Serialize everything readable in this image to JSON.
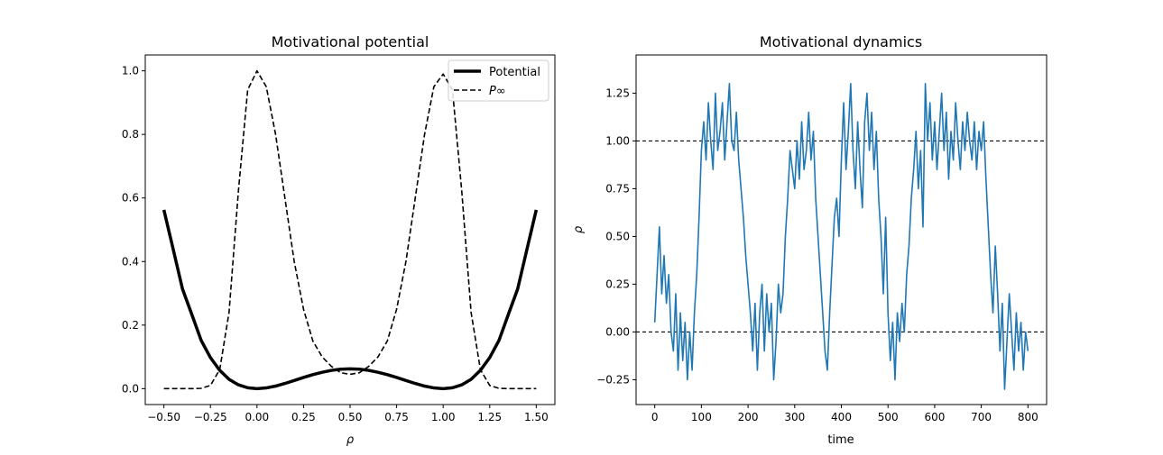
{
  "chart_data": [
    {
      "type": "line",
      "title": "Motivational potential",
      "xlabel": "ρ",
      "ylabel": "",
      "xlim": [
        -0.6,
        1.6
      ],
      "ylim": [
        -0.05,
        1.05
      ],
      "xticks": [
        -0.5,
        -0.25,
        0.0,
        0.25,
        0.5,
        0.75,
        1.0,
        1.25,
        1.5
      ],
      "xtick_labels": [
        "−0.50",
        "−0.25",
        "0.00",
        "0.25",
        "0.50",
        "0.75",
        "1.00",
        "1.25",
        "1.50"
      ],
      "yticks": [
        0.0,
        0.2,
        0.4,
        0.6,
        0.8,
        1.0
      ],
      "ytick_labels": [
        "0.0",
        "0.2",
        "0.4",
        "0.6",
        "0.8",
        "1.0"
      ],
      "legend": "top-right",
      "grid": false,
      "series": [
        {
          "name": "Potential",
          "color": "#000000",
          "style": "solid",
          "x": [
            -0.5,
            -0.45,
            -0.4,
            -0.35,
            -0.3,
            -0.25,
            -0.2,
            -0.15,
            -0.1,
            -0.05,
            0.0,
            0.05,
            0.1,
            0.15,
            0.2,
            0.25,
            0.3,
            0.35,
            0.4,
            0.45,
            0.5,
            0.55,
            0.6,
            0.65,
            0.7,
            0.75,
            0.8,
            0.85,
            0.9,
            0.95,
            1.0,
            1.05,
            1.1,
            1.15,
            1.2,
            1.25,
            1.3,
            1.35,
            1.4,
            1.45,
            1.5
          ],
          "y": [
            0.5625,
            0.4388,
            0.3136,
            0.2335,
            0.1521,
            0.0977,
            0.0576,
            0.0294,
            0.0121,
            0.0028,
            0.0,
            0.0023,
            0.0081,
            0.0163,
            0.0256,
            0.0352,
            0.0441,
            0.0515,
            0.0576,
            0.0613,
            0.0625,
            0.0613,
            0.0576,
            0.0515,
            0.0441,
            0.0352,
            0.0256,
            0.0163,
            0.0081,
            0.0023,
            0.0,
            0.0028,
            0.0121,
            0.0294,
            0.0576,
            0.0977,
            0.1521,
            0.2335,
            0.3136,
            0.4388,
            0.5625
          ]
        },
        {
          "name": "P∞",
          "color": "#000000",
          "style": "dashed",
          "x": [
            -0.5,
            -0.45,
            -0.4,
            -0.35,
            -0.3,
            -0.25,
            -0.2,
            -0.15,
            -0.1,
            -0.05,
            0.0,
            0.05,
            0.1,
            0.15,
            0.2,
            0.25,
            0.3,
            0.35,
            0.4,
            0.45,
            0.5,
            0.55,
            0.6,
            0.65,
            0.7,
            0.75,
            0.8,
            0.85,
            0.9,
            0.95,
            1.0,
            1.05,
            1.1,
            1.15,
            1.2,
            1.25,
            1.3,
            1.35,
            1.4,
            1.45,
            1.5
          ],
          "y": [
            0.0,
            0.0,
            0.0,
            0.0,
            0.001,
            0.01,
            0.06,
            0.24,
            0.62,
            0.94,
            1.0,
            0.95,
            0.8,
            0.6,
            0.4,
            0.25,
            0.15,
            0.1,
            0.07,
            0.05,
            0.045,
            0.05,
            0.07,
            0.1,
            0.15,
            0.25,
            0.4,
            0.6,
            0.8,
            0.95,
            0.99,
            0.94,
            0.62,
            0.24,
            0.06,
            0.01,
            0.001,
            0.0,
            0.0,
            0.0,
            0.0
          ]
        }
      ]
    },
    {
      "type": "line",
      "title": "Motivational dynamics",
      "xlabel": "time",
      "ylabel": "ρ",
      "xlim": [
        -40,
        840
      ],
      "ylim": [
        -0.38,
        1.45
      ],
      "xticks": [
        0,
        100,
        200,
        300,
        400,
        500,
        600,
        700,
        800
      ],
      "xtick_labels": [
        "0",
        "100",
        "200",
        "300",
        "400",
        "500",
        "600",
        "700",
        "800"
      ],
      "yticks": [
        -0.25,
        0.0,
        0.25,
        0.5,
        0.75,
        1.0,
        1.25
      ],
      "ytick_labels": [
        "−0.25",
        "0.00",
        "0.25",
        "0.50",
        "0.75",
        "1.00",
        "1.25"
      ],
      "grid": false,
      "reference_lines": [
        1.0,
        0.0
      ],
      "series": [
        {
          "color": "#1f77b4",
          "x": [
            0,
            5,
            10,
            15,
            20,
            25,
            30,
            35,
            40,
            45,
            50,
            55,
            60,
            65,
            70,
            75,
            80,
            85,
            90,
            95,
            100,
            105,
            110,
            115,
            120,
            125,
            130,
            135,
            140,
            145,
            150,
            155,
            160,
            165,
            170,
            175,
            180,
            185,
            190,
            195,
            200,
            205,
            210,
            215,
            220,
            225,
            230,
            235,
            240,
            245,
            250,
            255,
            260,
            265,
            270,
            275,
            280,
            285,
            290,
            295,
            300,
            305,
            310,
            315,
            320,
            325,
            330,
            335,
            340,
            345,
            350,
            355,
            360,
            365,
            370,
            375,
            380,
            385,
            390,
            395,
            400,
            405,
            410,
            415,
            420,
            425,
            430,
            435,
            440,
            445,
            450,
            455,
            460,
            465,
            470,
            475,
            480,
            485,
            490,
            495,
            500,
            505,
            510,
            515,
            520,
            525,
            530,
            535,
            540,
            545,
            550,
            555,
            560,
            565,
            570,
            575,
            580,
            585,
            590,
            595,
            600,
            605,
            610,
            615,
            620,
            625,
            630,
            635,
            640,
            645,
            650,
            655,
            660,
            665,
            670,
            675,
            680,
            685,
            690,
            695,
            700,
            705,
            710,
            715,
            720,
            725,
            730,
            735,
            740,
            745,
            750,
            755,
            760,
            765,
            770,
            775,
            780,
            785,
            790,
            795,
            800
          ],
          "y": [
            0.05,
            0.3,
            0.55,
            0.2,
            0.4,
            0.15,
            0.3,
            0.0,
            -0.1,
            0.2,
            -0.2,
            0.1,
            -0.15,
            0.05,
            -0.25,
            0.0,
            -0.2,
            0.1,
            0.3,
            0.6,
            0.95,
            1.1,
            0.9,
            1.2,
            1.0,
            0.85,
            1.25,
            0.95,
            1.05,
            1.2,
            0.9,
            1.1,
            1.3,
            1.0,
            0.95,
            1.15,
            0.9,
            0.75,
            0.6,
            0.4,
            0.25,
            0.1,
            -0.1,
            0.15,
            -0.2,
            0.1,
            0.25,
            -0.1,
            0.2,
            0.0,
            0.15,
            -0.25,
            -0.05,
            0.25,
            0.1,
            0.2,
            0.5,
            0.7,
            0.95,
            0.85,
            0.75,
            1.0,
            0.8,
            1.1,
            0.85,
            0.95,
            1.15,
            0.9,
            1.05,
            0.7,
            0.5,
            0.3,
            0.1,
            -0.1,
            -0.2,
            0.1,
            0.35,
            0.6,
            0.7,
            0.5,
            0.9,
            1.2,
            0.85,
            1.05,
            1.3,
            0.95,
            0.75,
            1.1,
            0.85,
            0.65,
            1.1,
            1.25,
            0.95,
            1.15,
            0.85,
            1.05,
            0.7,
            0.5,
            0.2,
            0.6,
            0.1,
            -0.15,
            0.05,
            -0.25,
            0.1,
            -0.05,
            0.15,
            0.0,
            0.3,
            0.45,
            0.7,
            0.85,
            1.05,
            0.75,
            0.95,
            0.55,
            1.3,
            1.0,
            1.2,
            0.9,
            1.1,
            0.85,
            1.05,
            1.25,
            0.95,
            1.15,
            0.8,
            1.05,
            0.9,
            1.2,
            1.0,
            0.85,
            1.1,
            0.95,
            1.15,
            1.0,
            0.9,
            1.1,
            0.85,
            1.05,
            0.95,
            1.1,
            0.8,
            0.55,
            0.3,
            0.1,
            0.45,
            0.2,
            -0.1,
            0.15,
            -0.3,
            -0.05,
            0.2,
            0.0,
            -0.2,
            0.1,
            -0.1,
            0.05,
            -0.2,
            0.0,
            -0.1
          ]
        }
      ]
    }
  ]
}
